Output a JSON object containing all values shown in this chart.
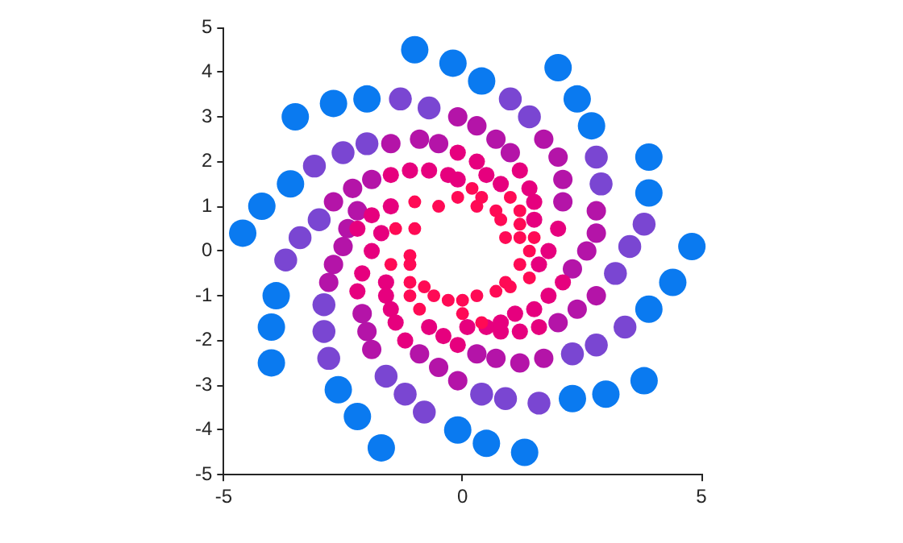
{
  "chart_data": {
    "type": "bubble",
    "xlim": [
      -5,
      5
    ],
    "ylim": [
      -5,
      5
    ],
    "xticks": [
      -5,
      0,
      5
    ],
    "yticks": [
      -5,
      -4,
      -3,
      -2,
      -1,
      0,
      1,
      2,
      3,
      4,
      5
    ],
    "legend": false,
    "series": [
      {
        "color": "#ff0a55",
        "x": [
          1.5,
          1.4,
          1.0,
          1.2,
          1.2,
          1.2,
          0.2,
          0.4,
          0.7,
          0.8,
          0.9,
          -0.1,
          0.3,
          0.4,
          0.0,
          1.4,
          1.0,
          0.7,
          0.3,
          0.0,
          1.2,
          0.9,
          -1.5,
          -1.1,
          -1.1,
          -1.1,
          -0.9,
          -1.1,
          -0.8,
          -0.6,
          -0.3,
          -1.0,
          -0.5,
          -1.4,
          -1.0
        ],
        "values": [
          0.3,
          0.0,
          1.2,
          0.9,
          0.6,
          0.3,
          1.4,
          1.2,
          0.9,
          0.7,
          0.3,
          1.2,
          1.0,
          -1.6,
          -1.4,
          -0.6,
          -0.8,
          -0.9,
          -1.0,
          -1.1,
          -0.3,
          -0.7,
          -0.3,
          -0.3,
          -0.7,
          -1.0,
          -1.3,
          -0.1,
          -0.8,
          -1.0,
          -1.1,
          1.1,
          1.0,
          0.5,
          0.5
        ],
        "sizes": [
          0.22,
          0.22,
          0.22,
          0.22,
          0.22,
          0.22,
          0.22,
          0.22,
          0.22,
          0.22,
          0.22,
          0.22,
          0.22,
          0.22,
          0.22,
          0.22,
          0.22,
          0.22,
          0.22,
          0.22,
          0.22,
          0.22,
          0.22,
          0.22,
          0.22,
          0.22,
          0.22,
          0.22,
          0.22,
          0.22,
          0.22,
          0.22,
          0.22,
          0.22,
          0.22
        ]
      },
      {
        "color": "#e6007e",
        "x": [
          -0.1,
          -1.5,
          -1.1,
          -0.7,
          -0.3,
          2.0,
          1.8,
          1.2,
          1.4,
          1.5,
          1.5,
          0.3,
          0.5,
          0.8,
          -0.1,
          -0.1,
          1.6,
          1.2,
          0.8,
          0.5,
          0.1,
          2.1,
          1.8,
          1.5,
          1.1,
          0.8,
          1.6,
          -2.1,
          -2.2,
          -1.2,
          -1.9,
          -1.6,
          -1.6,
          -1.5,
          -1.4,
          -0.7,
          -0.4,
          -2.2,
          -1.9,
          -1.5,
          -1.7
        ],
        "values": [
          2.2,
          1.7,
          1.8,
          1.8,
          1.7,
          0.5,
          0.0,
          1.8,
          1.4,
          1.1,
          0.7,
          2.0,
          1.7,
          1.5,
          1.6,
          -2.1,
          -1.7,
          -1.8,
          -1.8,
          -1.7,
          -1.7,
          -0.7,
          -1.0,
          -1.3,
          -1.4,
          -1.6,
          -0.3,
          -0.5,
          -0.9,
          -2.0,
          0.0,
          -0.7,
          -1.0,
          -1.3,
          -1.6,
          -1.7,
          -1.9,
          0.5,
          0.8,
          1.0,
          0.4
        ],
        "sizes": [
          0.35,
          0.35,
          0.35,
          0.35,
          0.35,
          0.35,
          0.35,
          0.35,
          0.35,
          0.35,
          0.35,
          0.35,
          0.35,
          0.35,
          0.35,
          0.35,
          0.35,
          0.35,
          0.35,
          0.35,
          0.35,
          0.35,
          0.35,
          0.35,
          0.35,
          0.35,
          0.35,
          0.35,
          0.35,
          0.35,
          0.35,
          0.35,
          0.35,
          0.35,
          0.35,
          0.35,
          0.35,
          0.35,
          0.35,
          0.35,
          0.35
        ]
      },
      {
        "color": "#b414a8",
        "x": [
          -0.1,
          -1.5,
          -0.9,
          -0.5,
          -2.7,
          -2.3,
          -1.9,
          -2.4,
          -2.2,
          1.7,
          2.0,
          2.1,
          2.1,
          0.3,
          0.7,
          1.0,
          2.8,
          2.8,
          2.6,
          1.7,
          1.2,
          0.7,
          0.3,
          -0.1,
          2.8,
          2.4,
          2.0,
          2.3,
          -2.7,
          -2.8,
          -2.5,
          -2.1,
          -2.0,
          -1.9,
          -0.9,
          -0.5
        ],
        "values": [
          3.0,
          2.4,
          2.5,
          2.4,
          1.1,
          1.4,
          1.6,
          0.5,
          0.9,
          2.5,
          2.1,
          1.6,
          1.1,
          2.8,
          2.5,
          2.2,
          0.9,
          0.4,
          0.0,
          -2.4,
          -2.5,
          -2.4,
          -2.3,
          -2.9,
          -1.0,
          -1.3,
          -1.6,
          -0.4,
          -0.3,
          -0.7,
          0.1,
          -1.4,
          -1.8,
          -2.2,
          -2.3,
          -2.6
        ],
        "sizes": [
          0.5,
          0.5,
          0.5,
          0.5,
          0.5,
          0.5,
          0.5,
          0.5,
          0.5,
          0.5,
          0.5,
          0.5,
          0.5,
          0.5,
          0.5,
          0.5,
          0.5,
          0.5,
          0.5,
          0.5,
          0.5,
          0.5,
          0.5,
          0.5,
          0.5,
          0.5,
          0.5,
          0.5,
          0.5,
          0.5,
          0.5,
          0.5,
          0.5,
          0.5,
          0.5,
          0.5
        ]
      },
      {
        "color": "#7a46d2",
        "x": [
          -1.3,
          -0.7,
          -3.1,
          -2.5,
          -2.0,
          -3.4,
          -3.7,
          -3.0,
          1.0,
          1.4,
          2.8,
          2.9,
          3.8,
          3.5,
          3.4,
          2.8,
          2.3,
          1.6,
          0.9,
          0.4,
          3.2,
          -2.9,
          -2.9,
          -2.8,
          -1.6,
          -1.2,
          -0.8
        ],
        "values": [
          3.4,
          3.2,
          1.9,
          2.2,
          2.4,
          0.3,
          -0.2,
          0.7,
          3.4,
          3.0,
          2.1,
          1.5,
          0.6,
          0.1,
          -1.7,
          -2.1,
          -2.3,
          -3.4,
          -3.3,
          -3.2,
          -0.5,
          -1.2,
          -1.8,
          -2.4,
          -2.8,
          -3.2,
          -3.6
        ],
        "sizes": [
          0.7,
          0.7,
          0.7,
          0.7,
          0.7,
          0.7,
          0.7,
          0.7,
          0.7,
          0.7,
          0.7,
          0.7,
          0.7,
          0.7,
          0.7,
          0.7,
          0.7,
          0.7,
          0.7,
          0.7,
          0.7,
          0.7,
          0.7,
          0.7,
          0.7,
          0.7,
          0.7
        ]
      },
      {
        "color": "#0a7af0",
        "x": [
          -1.0,
          -0.2,
          -3.5,
          -2.7,
          -2.0,
          -4.6,
          -4.2,
          -3.6,
          0.4,
          2.0,
          2.4,
          2.7,
          3.9,
          3.9,
          4.8,
          4.4,
          3.9,
          3.8,
          3.0,
          2.3,
          -0.1,
          0.5,
          1.3,
          -3.9,
          -4.0,
          -4.0,
          -2.6,
          -2.2,
          -1.7
        ],
        "values": [
          4.5,
          4.2,
          3.0,
          3.3,
          3.4,
          0.4,
          1.0,
          1.5,
          3.8,
          4.1,
          3.4,
          2.8,
          2.1,
          1.3,
          0.1,
          -0.7,
          -1.3,
          -2.9,
          -3.2,
          -3.3,
          -4.0,
          -4.3,
          -4.5,
          -1.0,
          -1.7,
          -2.5,
          -3.1,
          -3.7,
          -4.4
        ],
        "sizes": [
          1,
          1,
          1,
          1,
          1,
          1,
          1,
          1,
          1,
          1,
          1,
          1,
          1,
          1,
          1,
          1,
          1,
          1,
          1,
          1,
          1,
          1,
          1,
          1,
          1,
          1,
          1,
          1,
          1
        ]
      }
    ]
  }
}
